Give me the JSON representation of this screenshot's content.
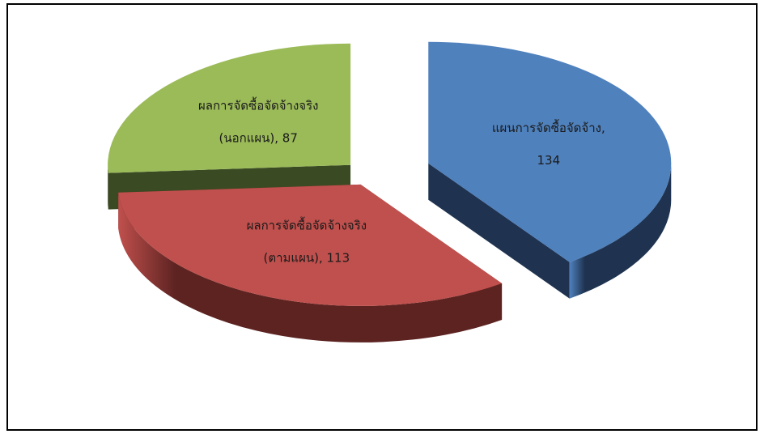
{
  "chart_data": {
    "type": "pie",
    "style": "3d-exploded",
    "categories": [
      "แผนการจัดซื้อจัดจ้าง",
      "ผลการจัดซื้อจัดจ้างจริง (ตามแผน)",
      "ผลการจัดซื้อจัดจ้างจริง (นอกแผน)"
    ],
    "values": [
      134,
      113,
      87
    ],
    "colors": [
      "#4f81bd",
      "#c0504d",
      "#9bbb59"
    ],
    "side_colors": [
      "#1f3350",
      "#5c2321",
      "#3a4a23"
    ],
    "labels": [
      {
        "lines": [
          "แผนการจัดซื้อจัดจ้าง,",
          "134"
        ]
      },
      {
        "lines": [
          "ผลการจัดซื้อจัดจ้างจริง",
          "(ตามแผน), 113"
        ]
      },
      {
        "lines": [
          "ผลการจัดซื้อจัดจ้างจริง",
          "(นอกแผน), 87"
        ]
      }
    ],
    "legend": "none",
    "title": ""
  }
}
